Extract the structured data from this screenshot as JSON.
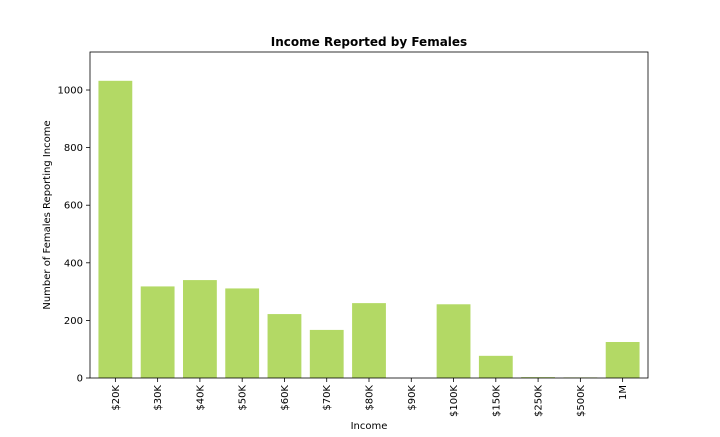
{
  "chart_data": {
    "type": "bar",
    "title": "Income Reported by Females",
    "xlabel": "Income",
    "ylabel": "Number of Females Reporting Income",
    "categories": [
      "$20K",
      "$30K",
      "$40K",
      "$50K",
      "$60K",
      "$70K",
      "$80K",
      "$90K",
      "$100K",
      "$150K",
      "$250K",
      "$500K",
      "1M"
    ],
    "values": [
      1032,
      318,
      340,
      311,
      222,
      167,
      260,
      0,
      256,
      77,
      3,
      2,
      125
    ],
    "ylim": [
      0,
      1132
    ],
    "yticks": [
      0,
      200,
      400,
      600,
      800,
      1000
    ],
    "bar_color": "#b3d965",
    "grid": false,
    "legend": "none"
  }
}
